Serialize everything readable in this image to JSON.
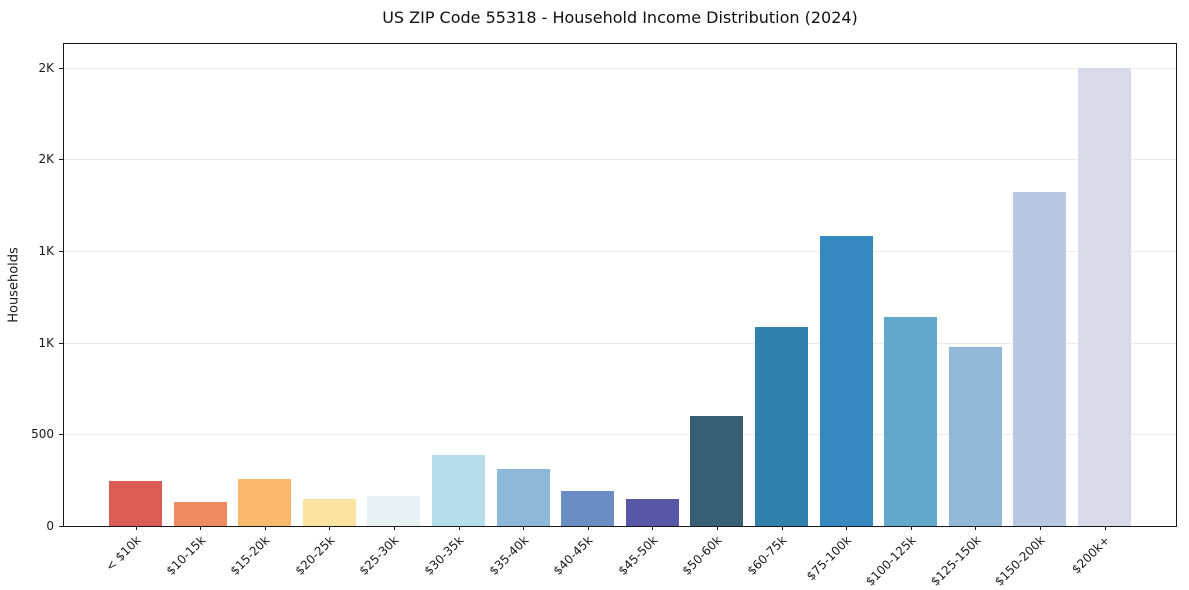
{
  "chart_data": {
    "type": "bar",
    "title": "US ZIP Code 55318 - Household Income Distribution (2024)",
    "xlabel": "",
    "ylabel": "Households",
    "categories": [
      "< $10k",
      "$10-15k",
      "$15-20k",
      "$20-25k",
      "$25-30k",
      "$30-35k",
      "$35-40k",
      "$40-45k",
      "$45-50k",
      "$50-60k",
      "$60-75k",
      "$75-100k",
      "$100-125k",
      "$125-150k",
      "$150-200k",
      "$200k+"
    ],
    "values": [
      245,
      133,
      258,
      146,
      165,
      386,
      311,
      190,
      149,
      603,
      1085,
      1583,
      1141,
      975,
      1822,
      2497
    ],
    "bar_colors": [
      "#d95d55",
      "#ef8a60",
      "#fbb96e",
      "#fce3a2",
      "#e7f1f3",
      "#b7dcea",
      "#8db7d8",
      "#6a8dc3",
      "#5957a7",
      "#375e73",
      "#3080ab",
      "#3689c0",
      "#61a8cb",
      "#92b8d7",
      "#b9c8e0",
      "#d8dae8"
    ],
    "ylim": [
      0,
      2630
    ],
    "yticks": [
      {
        "value": 0,
        "label": "0"
      },
      {
        "value": 500,
        "label": "500"
      },
      {
        "value": 1000,
        "label": "1K"
      },
      {
        "value": 1500,
        "label": "1K"
      },
      {
        "value": 2000,
        "label": "2K"
      },
      {
        "value": 2500,
        "label": "2K"
      }
    ],
    "grid": true,
    "legend": false,
    "background_color": "#ffffff",
    "grid_color": "#ebebeb",
    "axis_color": "#1a1a1a",
    "text_color": "#1a1a1a"
  }
}
